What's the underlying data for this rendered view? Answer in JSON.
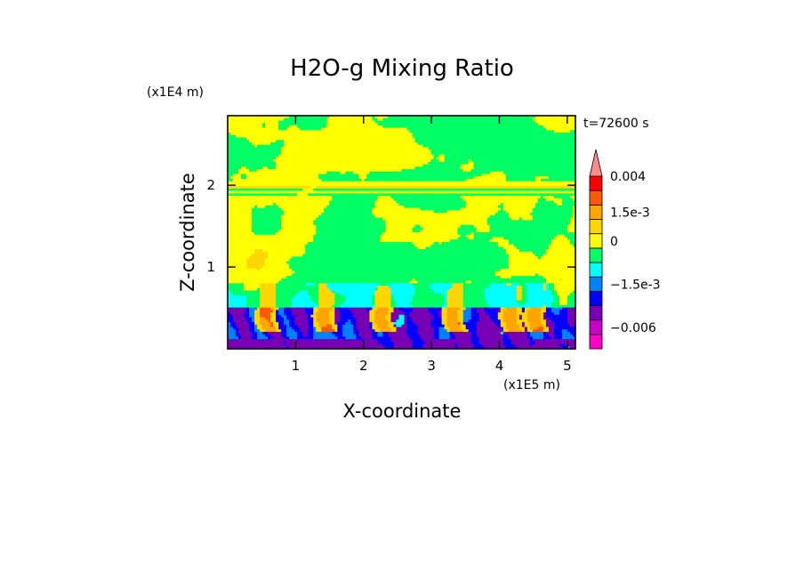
{
  "chart_data": {
    "type": "heatmap",
    "title": "H2O-g Mixing Ratio",
    "time_label": "t=72600 s",
    "xlabel": "X-coordinate",
    "ylabel": "Z-coordinate",
    "x_scale_note": "(x1E5 m)",
    "y_scale_note": "(x1E4 m)",
    "xlim": [
      0,
      5.12
    ],
    "ylim": [
      0,
      2.85
    ],
    "x_ticks": [
      {
        "value": 1,
        "label": "1"
      },
      {
        "value": 2,
        "label": "2"
      },
      {
        "value": 3,
        "label": "3"
      },
      {
        "value": 4,
        "label": "4"
      },
      {
        "value": 5,
        "label": "5"
      }
    ],
    "y_ticks": [
      {
        "value": 1,
        "label": "1"
      },
      {
        "value": 2,
        "label": "2"
      }
    ],
    "colorbar": {
      "levels": [
        {
          "color": "#ff00c8"
        },
        {
          "color": "#c800c8"
        },
        {
          "color": "#7800b4"
        },
        {
          "color": "#0000ff"
        },
        {
          "color": "#0082ff"
        },
        {
          "color": "#00ffff"
        },
        {
          "color": "#00ff64"
        },
        {
          "color": "#ffff00"
        },
        {
          "color": "#ffd700"
        },
        {
          "color": "#ffa500"
        },
        {
          "color": "#ff5a00"
        },
        {
          "color": "#ff0000"
        },
        {
          "color": "#ff8c8c"
        }
      ],
      "tick_labels": [
        {
          "label": "0.004",
          "level_index": 12
        },
        {
          "label": "1.5e-3",
          "level_index": 9
        },
        {
          "label": "0",
          "level_index": 7
        },
        {
          "label": "−1.5e-3",
          "level_index": 4
        },
        {
          "label": "−0.006",
          "level_index": 1
        }
      ]
    },
    "field_description": {
      "bands": [
        {
          "z_range": [
            2.0,
            2.85
          ],
          "dominant": [
            "#00ff64",
            "#ffff00"
          ]
        },
        {
          "z_range": [
            0.8,
            2.0
          ],
          "dominant": [
            "#ffff00",
            "#00ff64"
          ]
        },
        {
          "z_range": [
            0.5,
            0.8
          ],
          "dominant": [
            "#00ffff",
            "#00ff64"
          ]
        },
        {
          "z_range": [
            0.0,
            0.5
          ],
          "dominant": [
            "#0000ff",
            "#7800b4",
            "#ffa500"
          ]
        }
      ]
    }
  }
}
